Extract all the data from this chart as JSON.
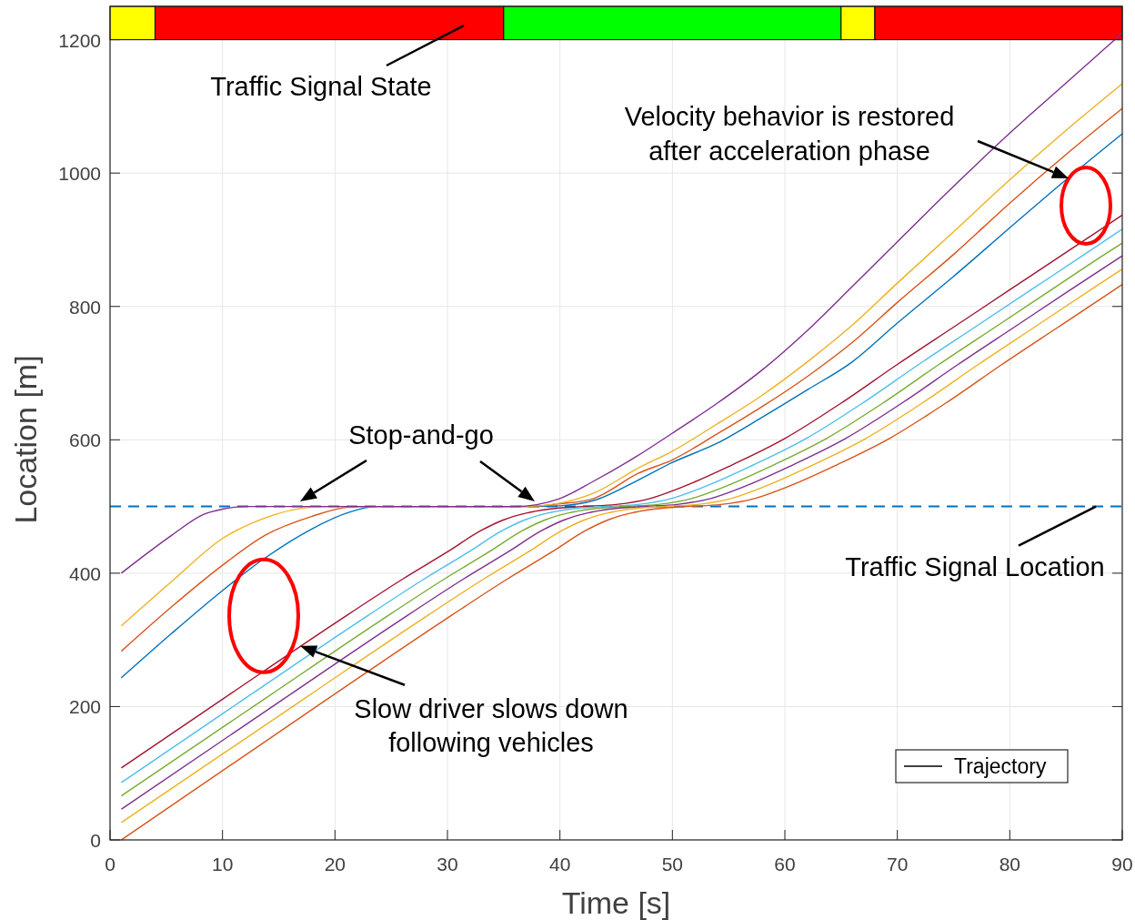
{
  "chart_data": {
    "type": "line",
    "xlabel": "Time [s]",
    "ylabel": "Location [m]",
    "xlim": [
      0,
      90
    ],
    "xticks": [
      0,
      10,
      20,
      30,
      40,
      50,
      60,
      70,
      80,
      90
    ],
    "ylim": [
      0,
      1250
    ],
    "yticks": [
      0,
      200,
      400,
      600,
      800,
      1000,
      1200
    ],
    "grid": true,
    "legend": "bottom right",
    "series": [
      {
        "color": "#0072bd",
        "x": [
          1,
          5.5,
          10,
          13.8,
          17.9,
          21.2,
          23.6,
          38,
          40,
          43,
          47,
          50,
          54,
          58,
          62,
          66,
          70,
          75,
          80,
          85,
          90
        ],
        "values": [
          243,
          310,
          374,
          423,
          466,
          491,
          500,
          500,
          501,
          509,
          540,
          566,
          595,
          634,
          675,
          717,
          775,
          845,
          918,
          990,
          1059
        ]
      },
      {
        "color": "#d95319",
        "x": [
          1,
          5.5,
          10,
          13.8,
          17.9,
          21.2,
          23,
          37,
          40,
          43,
          47,
          50,
          54,
          58,
          62,
          66,
          70,
          75,
          80,
          85,
          90
        ],
        "values": [
          283,
          350,
          412,
          457,
          485,
          499,
          500,
          500,
          504,
          512,
          550,
          570,
          609,
          650,
          695,
          746,
          806,
          878,
          955,
          1028,
          1097
        ]
      },
      {
        "color": "#edb120",
        "x": [
          1,
          5.5,
          10,
          13.8,
          17.9,
          20,
          37,
          40,
          43,
          47,
          50,
          54,
          58,
          62,
          66,
          70,
          75,
          80,
          85,
          90
        ],
        "values": [
          321,
          388,
          452,
          483,
          499,
          500,
          500,
          505,
          520,
          558,
          583,
          624,
          667,
          717,
          772,
          835,
          912,
          990,
          1064,
          1134
        ]
      },
      {
        "color": "#7e2f8e",
        "x": [
          1,
          5.5,
          8.3,
          10,
          12,
          36,
          40,
          43,
          46.8,
          50,
          54,
          58,
          62,
          66,
          70,
          75,
          80,
          85,
          90
        ],
        "values": [
          400,
          457,
          488,
          496,
          500,
          500,
          512,
          538,
          575,
          610,
          655,
          705,
          764,
          830,
          897,
          980,
          1060,
          1135,
          1210
        ]
      },
      {
        "color": "#a2142f",
        "x": [
          1,
          10,
          20,
          26,
          30,
          33,
          35,
          37,
          39,
          42,
          45,
          48,
          51,
          55,
          60,
          65,
          70,
          75,
          80,
          85,
          90
        ],
        "values": [
          108,
          211,
          325,
          391,
          432,
          464,
          480,
          490,
          496,
          500,
          503,
          512,
          530,
          560,
          602,
          655,
          713,
          769,
          825,
          881,
          937
        ]
      },
      {
        "color": "#4dbeee",
        "x": [
          1,
          11.9,
          21.9,
          27.9,
          31.9,
          34.9,
          36.9,
          38.9,
          40.9,
          43.9,
          46.9,
          49.9,
          52.9,
          56.9,
          61.9,
          66.9,
          71.9,
          76.9,
          81.9,
          86.9,
          90
        ],
        "values": [
          86,
          211,
          325,
          391,
          432,
          464,
          480,
          490,
          496,
          500,
          503,
          512,
          530,
          560,
          602,
          655,
          713,
          769,
          825,
          881,
          916
        ]
      },
      {
        "color": "#77ac30",
        "x": [
          1,
          13.7,
          23.7,
          29.7,
          33.7,
          36.7,
          38.7,
          40.7,
          42.7,
          45.7,
          48.7,
          51.7,
          54.7,
          58.7,
          63.7,
          68.7,
          73.7,
          78.7,
          83.7,
          88.7,
          90
        ],
        "values": [
          66,
          211,
          325,
          391,
          432,
          464,
          480,
          490,
          496,
          500,
          503,
          512,
          530,
          560,
          602,
          655,
          713,
          769,
          825,
          881,
          895
        ]
      },
      {
        "color": "#7e2f8e",
        "x": [
          1,
          15.4,
          25.4,
          31.4,
          35.4,
          38.4,
          40.4,
          42.4,
          44.4,
          47.4,
          50.4,
          53.4,
          56.4,
          60.4,
          65.4,
          70.4,
          75.4,
          80.4,
          85.4,
          90
        ],
        "values": [
          46,
          211,
          325,
          391,
          432,
          464,
          480,
          490,
          496,
          500,
          503,
          512,
          530,
          560,
          602,
          655,
          713,
          769,
          825,
          876
        ]
      },
      {
        "color": "#edb120",
        "x": [
          1,
          17.2,
          27.2,
          33.2,
          37.2,
          40.2,
          42.2,
          44.2,
          46.2,
          49.2,
          52.2,
          55.2,
          58.2,
          62.2,
          67.2,
          72.2,
          77.2,
          82.2,
          87.2,
          90
        ],
        "values": [
          26,
          211,
          325,
          391,
          432,
          464,
          480,
          490,
          496,
          500,
          503,
          512,
          530,
          560,
          602,
          655,
          713,
          769,
          825,
          856
        ]
      },
      {
        "color": "#d95319",
        "x": [
          1,
          19.3,
          29.3,
          35.3,
          39.3,
          42.3,
          44.3,
          46.3,
          48.3,
          51.3,
          54.3,
          57.3,
          60.3,
          64.3,
          69.3,
          74.3,
          79.3,
          84.3,
          89.3,
          90
        ],
        "values": [
          0,
          211,
          325,
          391,
          432,
          464,
          480,
          490,
          496,
          500,
          503,
          512,
          530,
          560,
          602,
          655,
          713,
          769,
          825,
          833
        ]
      },
      {
        "name": "Trajectory",
        "color": "#000000"
      }
    ],
    "ref_lines": [
      {
        "axis": "y",
        "value": 500,
        "label": "Traffic Signal Location",
        "color": "#0072bd",
        "line_style": "dashed"
      }
    ],
    "bands": [
      {
        "axis": "x",
        "from": 0,
        "to": 4,
        "color": "#ffff00"
      },
      {
        "axis": "x",
        "from": 4,
        "to": 35,
        "color": "#ff0000"
      },
      {
        "axis": "x",
        "from": 35,
        "to": 65,
        "color": "#00ff00"
      },
      {
        "axis": "x",
        "from": 65,
        "to": 68,
        "color": "#ffff00"
      },
      {
        "axis": "x",
        "from": 68,
        "to": 90,
        "color": "#ff0000"
      }
    ],
    "annotations": [
      "Traffic Signal State",
      "Stop-and-go",
      {
        "text": "Slow driver slows down\nfollowing vehicles",
        "x": 16.9,
        "y": 291
      },
      "Velocity behavior is restored\nafter acceleration phase"
    ]
  }
}
